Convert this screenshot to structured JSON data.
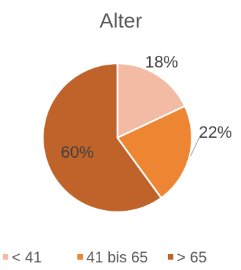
{
  "chart_data": {
    "type": "pie",
    "title": "Alter",
    "categories": [
      "< 41",
      "41 bis 65",
      "> 65"
    ],
    "values": [
      18,
      22,
      60
    ],
    "labels": [
      "18%",
      "22%",
      "60%"
    ],
    "colors": [
      "#F4BBA4",
      "#EE8533",
      "#C0632B"
    ],
    "legend_position": "bottom"
  }
}
